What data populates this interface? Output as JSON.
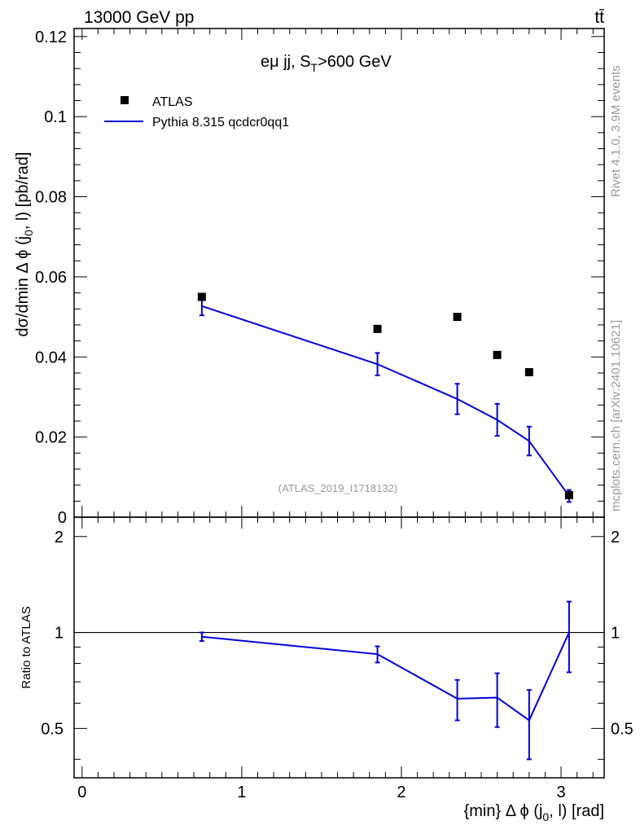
{
  "header": {
    "left": "13000 GeV pp",
    "right": "tt̄"
  },
  "main_panel": {
    "title": "eμ jj, S",
    "title_sub": "T",
    "title_tail": ">600 GeV",
    "ylabel": "dσ/dmin Δ ϕ (j",
    "ylabel_sub": "0",
    "ylabel_tail": ", l) [pb/rad]",
    "watermark": "(ATLAS_2019_I1718132)"
  },
  "legend": {
    "data_label": "ATLAS",
    "mc_label": "Pythia 8.315 qcdcr0qq1",
    "placement": "top-left"
  },
  "side_text": {
    "rivet": "Rivet 4.1.0,  3.9M events",
    "mcplots": "mcplots.cern.ch [arXiv:2401.10621]"
  },
  "ratio_panel": {
    "ylabel": "Ratio to ATLAS"
  },
  "xaxis": {
    "label": "{min} Δ ϕ (j",
    "label_sub": "0",
    "label_tail": ", l) [rad]"
  },
  "colors": {
    "mc": "#0000dd",
    "data": "#000000"
  },
  "chart_data": {
    "type": "scatter",
    "x": [
      0.75,
      1.85,
      2.35,
      2.6,
      2.8,
      3.05
    ],
    "xlim": [
      -0.05,
      3.27
    ],
    "main": {
      "ylim": [
        0,
        0.122
      ],
      "yticks": [
        0,
        0.02,
        0.04,
        0.06,
        0.08,
        0.1,
        0.12
      ],
      "ytick_labels": [
        "0",
        "0.02",
        "0.04",
        "0.06",
        "0.08",
        "0.1",
        "0.12"
      ],
      "series": [
        {
          "name": "ATLAS",
          "kind": "data",
          "values": [
            0.055,
            0.047,
            0.05,
            0.0405,
            0.0362,
            0.0055
          ]
        },
        {
          "name": "Pythia 8.315 qcdcr0qq1",
          "kind": "mc",
          "values": [
            0.0527,
            0.0382,
            0.0295,
            0.0243,
            0.019,
            0.0053
          ],
          "err": [
            0.0023,
            0.0028,
            0.0038,
            0.004,
            0.0036,
            0.0015
          ]
        }
      ]
    },
    "ratio": {
      "ylim": [
        0.35,
        2.3
      ],
      "yticks": [
        0.5,
        1,
        2
      ],
      "ytick_labels": [
        "0.5",
        "1",
        "2"
      ],
      "reference": 1,
      "values": [
        0.97,
        0.855,
        0.62,
        0.625,
        0.53,
        1.0
      ],
      "err": [
        0.03,
        0.05,
        0.09,
        0.12,
        0.13,
        0.25
      ]
    },
    "xticks": [
      0,
      1,
      2,
      3
    ],
    "xtick_labels": [
      "0",
      "1",
      "2",
      "3"
    ]
  }
}
